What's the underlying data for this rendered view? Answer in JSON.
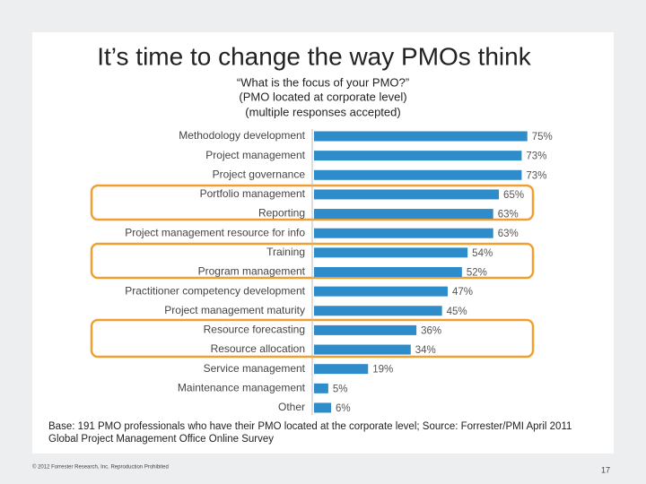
{
  "chart_data": {
    "type": "bar",
    "orientation": "horizontal",
    "title": "It’s time to change the way PMOs think",
    "subtitle": [
      "“What is the focus of your PMO?”",
      "(PMO located at corporate level)",
      "(multiple responses accepted)"
    ],
    "categories": [
      "Methodology development",
      "Project management",
      "Project governance",
      "Portfolio management",
      "Reporting",
      "Project management resource for info",
      "Training",
      "Program management",
      "Practitioner competency development",
      "Project management maturity",
      "Resource forecasting",
      "Resource allocation",
      "Service management",
      "Maintenance management",
      "Other"
    ],
    "values": [
      75,
      73,
      73,
      65,
      63,
      63,
      54,
      52,
      47,
      45,
      36,
      34,
      19,
      5,
      6
    ],
    "value_labels": [
      "75%",
      "73%",
      "73%",
      "65%",
      "63%",
      "63%",
      "54%",
      "52%",
      "47%",
      "45%",
      "36%",
      "34%",
      "19%",
      "5%",
      "6%"
    ],
    "color": "#2f8ccb",
    "xlim": [
      0,
      100
    ],
    "note": [
      "Base: 191 PMO professionals who have their PMO located at the corporate level; Source: Forrester/PMI April 2011",
      "Global Project Management Office Online Survey"
    ]
  },
  "footer": {
    "copyright": "© 2012 Forrester Research, Inc. Reproduction Prohibited",
    "page": "17"
  }
}
